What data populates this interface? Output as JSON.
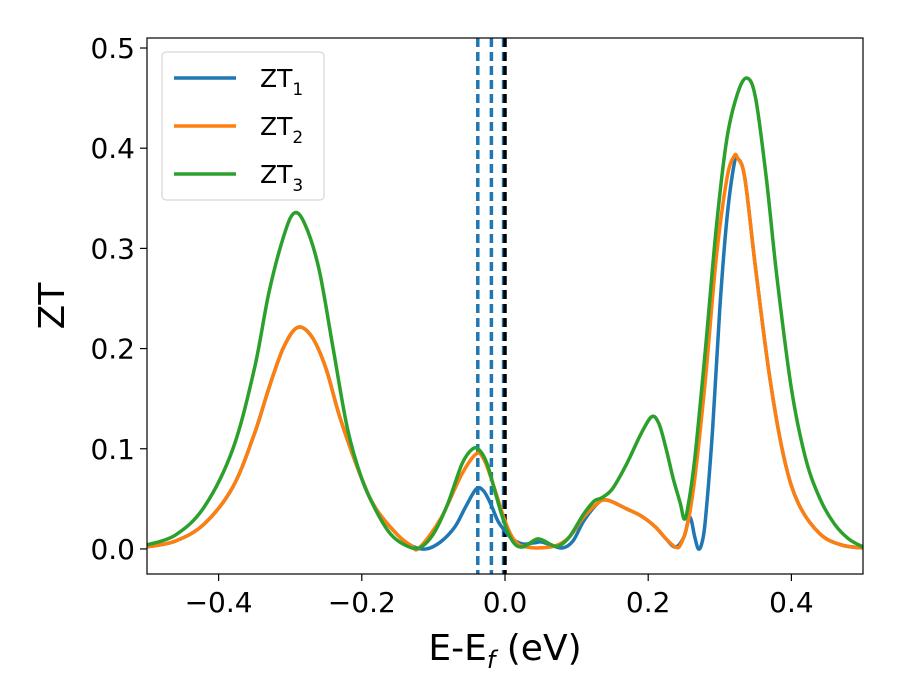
{
  "chart_data": {
    "type": "line",
    "xlabel": "E-E",
    "xlabel_sub": "f",
    "xlabel_unit": " (eV)",
    "ylabel": "ZT",
    "xlim": [
      -0.5,
      0.5
    ],
    "ylim": [
      -0.025,
      0.51
    ],
    "xticks": [
      -0.4,
      -0.2,
      0.0,
      0.2,
      0.4
    ],
    "xtick_labels": [
      "−0.4",
      "−0.2",
      "0.0",
      "0.2",
      "0.4"
    ],
    "yticks": [
      0.0,
      0.1,
      0.2,
      0.3,
      0.4,
      0.5
    ],
    "ytick_labels": [
      "0.0",
      "0.1",
      "0.2",
      "0.3",
      "0.4",
      "0.5"
    ],
    "grid": false,
    "legend_position": "upper-left",
    "vlines": [
      {
        "x": -0.038,
        "style": "dashed",
        "color": "#1f77b4"
      },
      {
        "x": -0.019,
        "style": "dashed",
        "color": "#1f77b4"
      },
      {
        "x": -0.002,
        "style": "dashed",
        "color": "#1f77b4"
      },
      {
        "x": 0.0,
        "style": "dashed",
        "color": "#000000"
      }
    ],
    "series": [
      {
        "name": "ZT",
        "subscript": "1",
        "color": "#1f77b4",
        "points": [
          [
            -0.5,
            0.002
          ],
          [
            -0.46,
            0.008
          ],
          [
            -0.42,
            0.025
          ],
          [
            -0.38,
            0.062
          ],
          [
            -0.35,
            0.115
          ],
          [
            -0.33,
            0.16
          ],
          [
            -0.31,
            0.2
          ],
          [
            -0.29,
            0.221
          ],
          [
            -0.27,
            0.212
          ],
          [
            -0.25,
            0.18
          ],
          [
            -0.23,
            0.13
          ],
          [
            -0.2,
            0.07
          ],
          [
            -0.18,
            0.04
          ],
          [
            -0.15,
            0.014
          ],
          [
            -0.13,
            0.003
          ],
          [
            -0.11,
            0.0
          ],
          [
            -0.09,
            0.007
          ],
          [
            -0.07,
            0.022
          ],
          [
            -0.055,
            0.042
          ],
          [
            -0.04,
            0.06
          ],
          [
            -0.03,
            0.058
          ],
          [
            -0.02,
            0.045
          ],
          [
            -0.01,
            0.028
          ],
          [
            0.0,
            0.018
          ],
          [
            0.01,
            0.01
          ],
          [
            0.025,
            0.005
          ],
          [
            0.04,
            0.006
          ],
          [
            0.05,
            0.007
          ],
          [
            0.06,
            0.005
          ],
          [
            0.08,
            0.001
          ],
          [
            0.095,
            0.008
          ],
          [
            0.11,
            0.028
          ],
          [
            0.13,
            0.046
          ],
          [
            0.14,
            0.049
          ],
          [
            0.15,
            0.047
          ],
          [
            0.17,
            0.04
          ],
          [
            0.19,
            0.033
          ],
          [
            0.21,
            0.022
          ],
          [
            0.225,
            0.01
          ],
          [
            0.238,
            0.002
          ],
          [
            0.25,
            0.012
          ],
          [
            0.258,
            0.032
          ],
          [
            0.265,
            0.012
          ],
          [
            0.27,
            0.0
          ],
          [
            0.275,
            0.006
          ],
          [
            0.28,
            0.03
          ],
          [
            0.29,
            0.12
          ],
          [
            0.3,
            0.24
          ],
          [
            0.31,
            0.33
          ],
          [
            0.32,
            0.384
          ],
          [
            0.325,
            0.39
          ],
          [
            0.335,
            0.37
          ],
          [
            0.35,
            0.28
          ],
          [
            0.37,
            0.17
          ],
          [
            0.39,
            0.09
          ],
          [
            0.41,
            0.045
          ],
          [
            0.44,
            0.015
          ],
          [
            0.47,
            0.004
          ],
          [
            0.5,
            0.001
          ]
        ]
      },
      {
        "name": "ZT",
        "subscript": "2",
        "color": "#ff7f0e",
        "points": [
          [
            -0.5,
            0.002
          ],
          [
            -0.46,
            0.008
          ],
          [
            -0.42,
            0.025
          ],
          [
            -0.38,
            0.062
          ],
          [
            -0.35,
            0.115
          ],
          [
            -0.33,
            0.16
          ],
          [
            -0.31,
            0.2
          ],
          [
            -0.29,
            0.221
          ],
          [
            -0.27,
            0.212
          ],
          [
            -0.25,
            0.18
          ],
          [
            -0.23,
            0.13
          ],
          [
            -0.2,
            0.07
          ],
          [
            -0.18,
            0.04
          ],
          [
            -0.15,
            0.014
          ],
          [
            -0.13,
            0.003
          ],
          [
            -0.12,
            0.001
          ],
          [
            -0.09,
            0.03
          ],
          [
            -0.06,
            0.075
          ],
          [
            -0.04,
            0.095
          ],
          [
            -0.03,
            0.09
          ],
          [
            -0.02,
            0.072
          ],
          [
            -0.01,
            0.05
          ],
          [
            0.0,
            0.028
          ],
          [
            0.01,
            0.012
          ],
          [
            0.02,
            0.004
          ],
          [
            0.03,
            0.002
          ],
          [
            0.045,
            0.001
          ],
          [
            0.07,
            0.003
          ],
          [
            0.09,
            0.012
          ],
          [
            0.11,
            0.032
          ],
          [
            0.13,
            0.046
          ],
          [
            0.14,
            0.049
          ],
          [
            0.15,
            0.047
          ],
          [
            0.17,
            0.04
          ],
          [
            0.19,
            0.033
          ],
          [
            0.21,
            0.022
          ],
          [
            0.225,
            0.01
          ],
          [
            0.238,
            0.002
          ],
          [
            0.245,
            0.004
          ],
          [
            0.255,
            0.025
          ],
          [
            0.265,
            0.07
          ],
          [
            0.28,
            0.17
          ],
          [
            0.295,
            0.29
          ],
          [
            0.31,
            0.37
          ],
          [
            0.32,
            0.392
          ],
          [
            0.325,
            0.39
          ],
          [
            0.335,
            0.37
          ],
          [
            0.35,
            0.28
          ],
          [
            0.37,
            0.17
          ],
          [
            0.39,
            0.09
          ],
          [
            0.41,
            0.045
          ],
          [
            0.44,
            0.015
          ],
          [
            0.47,
            0.004
          ],
          [
            0.5,
            0.001
          ]
        ]
      },
      {
        "name": "ZT",
        "subscript": "3",
        "color": "#2ca02c",
        "points": [
          [
            -0.5,
            0.004
          ],
          [
            -0.46,
            0.014
          ],
          [
            -0.42,
            0.042
          ],
          [
            -0.38,
            0.1
          ],
          [
            -0.35,
            0.18
          ],
          [
            -0.33,
            0.255
          ],
          [
            -0.31,
            0.31
          ],
          [
            -0.295,
            0.335
          ],
          [
            -0.28,
            0.325
          ],
          [
            -0.26,
            0.28
          ],
          [
            -0.24,
            0.2
          ],
          [
            -0.22,
            0.12
          ],
          [
            -0.2,
            0.07
          ],
          [
            -0.18,
            0.038
          ],
          [
            -0.16,
            0.015
          ],
          [
            -0.14,
            0.004
          ],
          [
            -0.12,
            0.001
          ],
          [
            -0.1,
            0.015
          ],
          [
            -0.08,
            0.045
          ],
          [
            -0.06,
            0.085
          ],
          [
            -0.045,
            0.1
          ],
          [
            -0.035,
            0.098
          ],
          [
            -0.025,
            0.085
          ],
          [
            -0.015,
            0.06
          ],
          [
            -0.005,
            0.035
          ],
          [
            0.005,
            0.015
          ],
          [
            0.015,
            0.004
          ],
          [
            0.025,
            0.002
          ],
          [
            0.035,
            0.006
          ],
          [
            0.045,
            0.01
          ],
          [
            0.055,
            0.008
          ],
          [
            0.065,
            0.004
          ],
          [
            0.075,
            0.003
          ],
          [
            0.09,
            0.012
          ],
          [
            0.11,
            0.035
          ],
          [
            0.125,
            0.048
          ],
          [
            0.135,
            0.051
          ],
          [
            0.15,
            0.06
          ],
          [
            0.17,
            0.085
          ],
          [
            0.19,
            0.115
          ],
          [
            0.205,
            0.132
          ],
          [
            0.215,
            0.125
          ],
          [
            0.225,
            0.1
          ],
          [
            0.235,
            0.07
          ],
          [
            0.245,
            0.045
          ],
          [
            0.25,
            0.03
          ],
          [
            0.255,
            0.04
          ],
          [
            0.265,
            0.09
          ],
          [
            0.28,
            0.2
          ],
          [
            0.295,
            0.32
          ],
          [
            0.31,
            0.41
          ],
          [
            0.325,
            0.455
          ],
          [
            0.338,
            0.47
          ],
          [
            0.35,
            0.45
          ],
          [
            0.365,
            0.37
          ],
          [
            0.38,
            0.27
          ],
          [
            0.4,
            0.16
          ],
          [
            0.42,
            0.09
          ],
          [
            0.44,
            0.05
          ],
          [
            0.46,
            0.025
          ],
          [
            0.48,
            0.01
          ],
          [
            0.5,
            0.002
          ]
        ]
      }
    ]
  }
}
